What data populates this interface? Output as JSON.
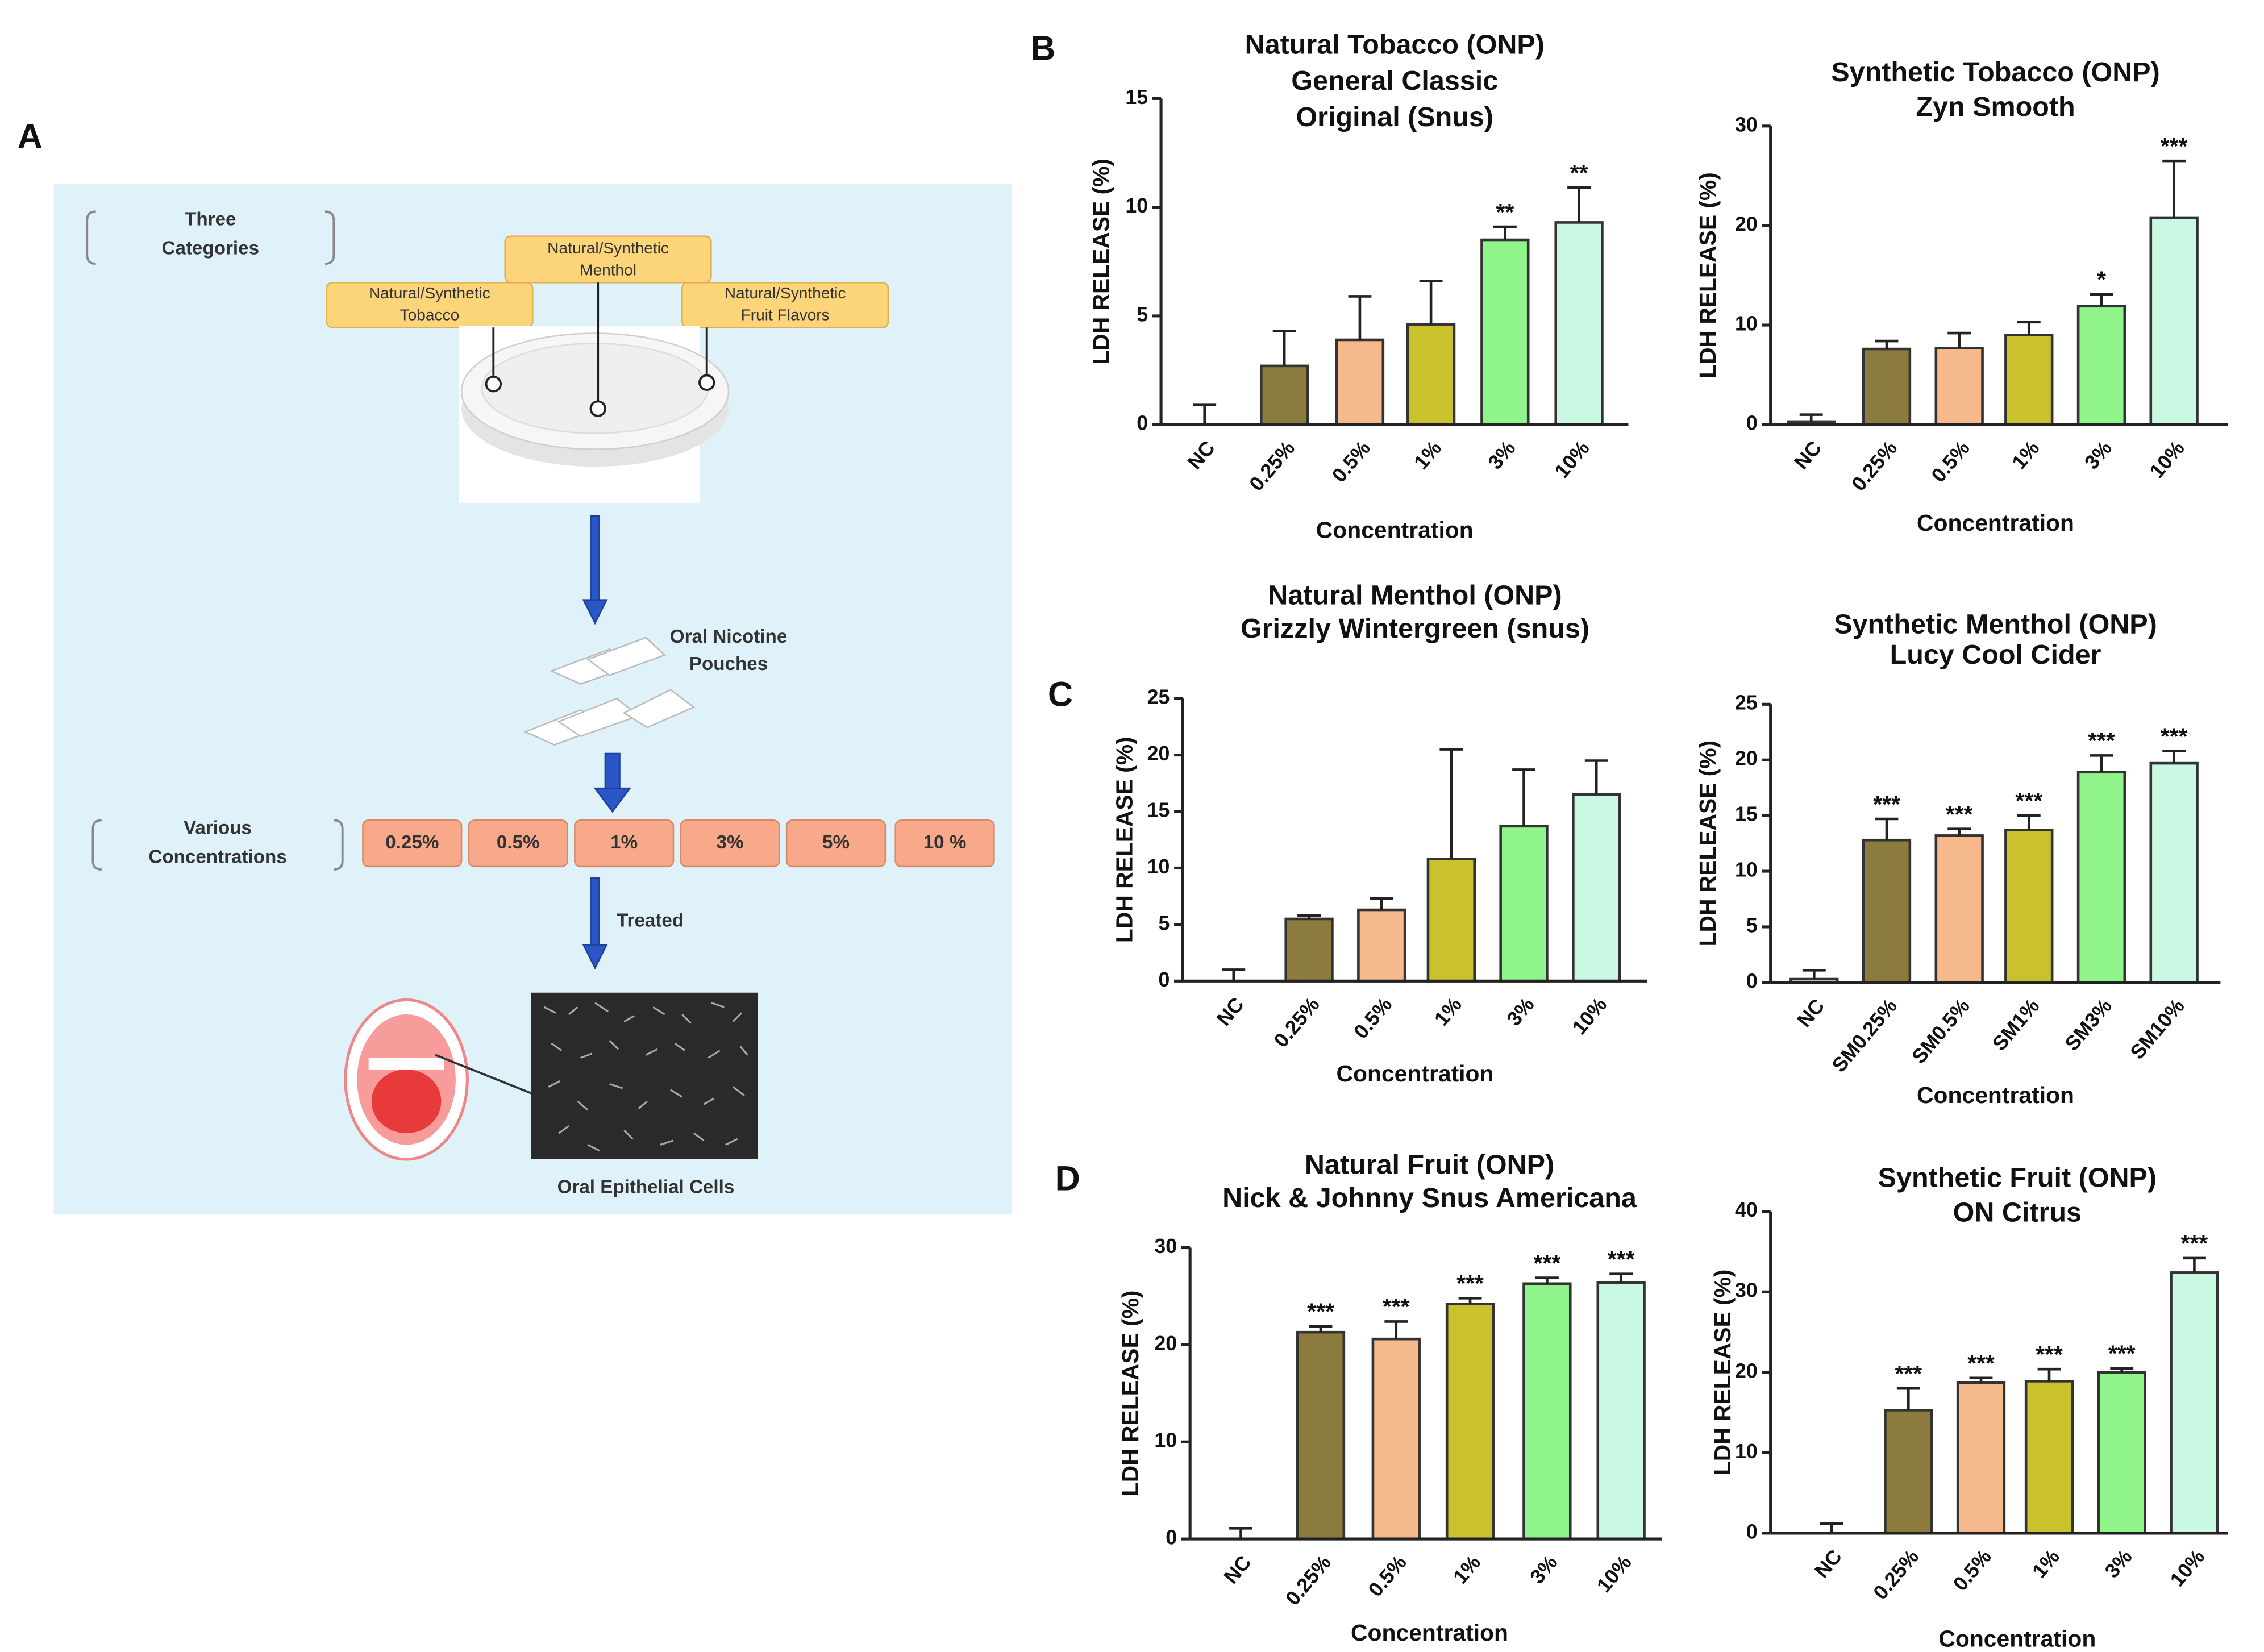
{
  "diagram": {
    "panel_labels": [
      "A",
      "B",
      "C",
      "D"
    ],
    "categories_header": [
      "Three",
      "Categories"
    ],
    "categories": [
      {
        "lines": [
          "Natural/Synthetic",
          "Menthol"
        ]
      },
      {
        "lines": [
          "Natural/Synthetic",
          "Tobacco"
        ]
      },
      {
        "lines": [
          "Natural/Synthetic",
          "Fruit Flavors"
        ]
      }
    ],
    "pouches_label": [
      "Oral Nicotine",
      "Pouches"
    ],
    "concentrations_header": [
      "Various",
      "Concentrations"
    ],
    "concentrations": [
      "0.25%",
      "0.5%",
      "1%",
      "3%",
      "5%",
      "10 %"
    ],
    "treated": "Treated",
    "cells_label": "Oral Epithelial Cells"
  },
  "chart_data": [
    {
      "type": "bar",
      "title": [
        "Natural Tobacco (ONP)",
        "General Classic",
        "Original (Snus)"
      ],
      "x_label": "Concentration",
      "y_label": "LDH RELEASE (%)",
      "categories": [
        "NC",
        "0.25%",
        "0.5%",
        "1%",
        "3%",
        "10%"
      ],
      "values": [
        0,
        2.7,
        3.9,
        4.6,
        8.5,
        9.3
      ],
      "errors": [
        0.9,
        1.6,
        2.0,
        2.0,
        0.6,
        1.6
      ],
      "annotations": [
        null,
        null,
        null,
        null,
        "**",
        "**"
      ],
      "colors": [
        "#ffffff",
        "#8b7b3c",
        "#f5b98c",
        "#c9c22c",
        "#8ff58b",
        "#c9f8e3"
      ],
      "ylim": [
        0,
        15
      ],
      "yticks": [
        0,
        5,
        10,
        15
      ]
    },
    {
      "type": "bar",
      "title": [
        "Synthetic Tobacco (ONP)",
        "Zyn Smooth"
      ],
      "x_label": "Concentration",
      "y_label": "LDH RELEASE (%)",
      "categories": [
        "NC",
        "0.25%",
        "0.5%",
        "1%",
        "3%",
        "10%"
      ],
      "values": [
        0.3,
        7.6,
        7.7,
        9.0,
        11.9,
        20.8
      ],
      "errors": [
        0.7,
        0.8,
        1.5,
        1.3,
        1.2,
        5.7
      ],
      "annotations": [
        null,
        null,
        null,
        null,
        "*",
        "***"
      ],
      "colors": [
        "#ffffff",
        "#8b7b3c",
        "#f5b98c",
        "#c9c22c",
        "#8ff58b",
        "#c9f8e3"
      ],
      "ylim": [
        0,
        30
      ],
      "yticks": [
        0,
        10,
        20,
        30
      ]
    },
    {
      "type": "bar",
      "title": [
        "Natural Menthol (ONP)",
        "Grizzly Wintergreen (snus)"
      ],
      "x_label": "Concentration",
      "y_label": "LDH RELEASE (%)",
      "categories": [
        "NC",
        "0.25%",
        "0.5%",
        "1%",
        "3%",
        "10%"
      ],
      "values": [
        0,
        5.5,
        6.3,
        10.8,
        13.7,
        16.5
      ],
      "errors": [
        1.0,
        0.3,
        1.0,
        9.7,
        5.0,
        3.0
      ],
      "annotations": [
        null,
        null,
        null,
        null,
        null,
        null
      ],
      "colors": [
        "#ffffff",
        "#8b7b3c",
        "#f5b98c",
        "#c9c22c",
        "#8ff58b",
        "#c9f8e3"
      ],
      "ylim": [
        0,
        25
      ],
      "yticks": [
        0,
        5,
        10,
        15,
        20,
        25
      ]
    },
    {
      "type": "bar",
      "title": [
        "Synthetic Menthol (ONP)",
        "Lucy Cool Cider"
      ],
      "x_label": "Concentration",
      "y_label": "LDH RELEASE (%)",
      "categories": [
        "NC",
        "SM0.25%",
        "SM0.5%",
        "SM1%",
        "SM3%",
        "SM10%"
      ],
      "values": [
        0.3,
        12.8,
        13.2,
        13.7,
        18.9,
        19.7
      ],
      "errors": [
        0.8,
        1.9,
        0.6,
        1.3,
        1.5,
        1.1
      ],
      "annotations": [
        null,
        "***",
        "***",
        "***",
        "***",
        "***"
      ],
      "colors": [
        "#ffffff",
        "#8b7b3c",
        "#f5b98c",
        "#c9c22c",
        "#8ff58b",
        "#c9f8e3"
      ],
      "ylim": [
        0,
        25
      ],
      "yticks": [
        0,
        5,
        10,
        15,
        20,
        25
      ]
    },
    {
      "type": "bar",
      "title": [
        "Natural Fruit (ONP)",
        "Nick & Johnny Snus Americana"
      ],
      "x_label": "Concentration",
      "y_label": "LDH RELEASE (%)",
      "categories": [
        "NC",
        "0.25%",
        "0.5%",
        "1%",
        "3%",
        "10%"
      ],
      "values": [
        0,
        21.3,
        20.6,
        24.2,
        26.3,
        26.4
      ],
      "errors": [
        1.1,
        0.6,
        1.8,
        0.6,
        0.6,
        0.9
      ],
      "annotations": [
        null,
        "***",
        "***",
        "***",
        "***",
        "***"
      ],
      "colors": [
        "#ffffff",
        "#8b7b3c",
        "#f5b98c",
        "#c9c22c",
        "#8ff58b",
        "#c9f8e3"
      ],
      "ylim": [
        0,
        30
      ],
      "yticks": [
        0,
        10,
        20,
        30
      ]
    },
    {
      "type": "bar",
      "title": [
        "Synthetic Fruit (ONP)",
        "ON Citrus"
      ],
      "x_label": "Concentration",
      "y_label": "LDH RELEASE (%)",
      "categories": [
        "NC",
        "0.25%",
        "0.5%",
        "1%",
        "3%",
        "10%"
      ],
      "values": [
        0,
        15.3,
        18.7,
        18.9,
        20.0,
        32.4
      ],
      "errors": [
        1.2,
        2.7,
        0.6,
        1.5,
        0.5,
        1.8
      ],
      "annotations": [
        null,
        "***",
        "***",
        "***",
        "***",
        "***"
      ],
      "colors": [
        "#ffffff",
        "#8b7b3c",
        "#f5b98c",
        "#c9c22c",
        "#8ff58b",
        "#c9f8e3"
      ],
      "ylim": [
        0,
        40
      ],
      "yticks": [
        0,
        10,
        20,
        30,
        40
      ]
    }
  ]
}
